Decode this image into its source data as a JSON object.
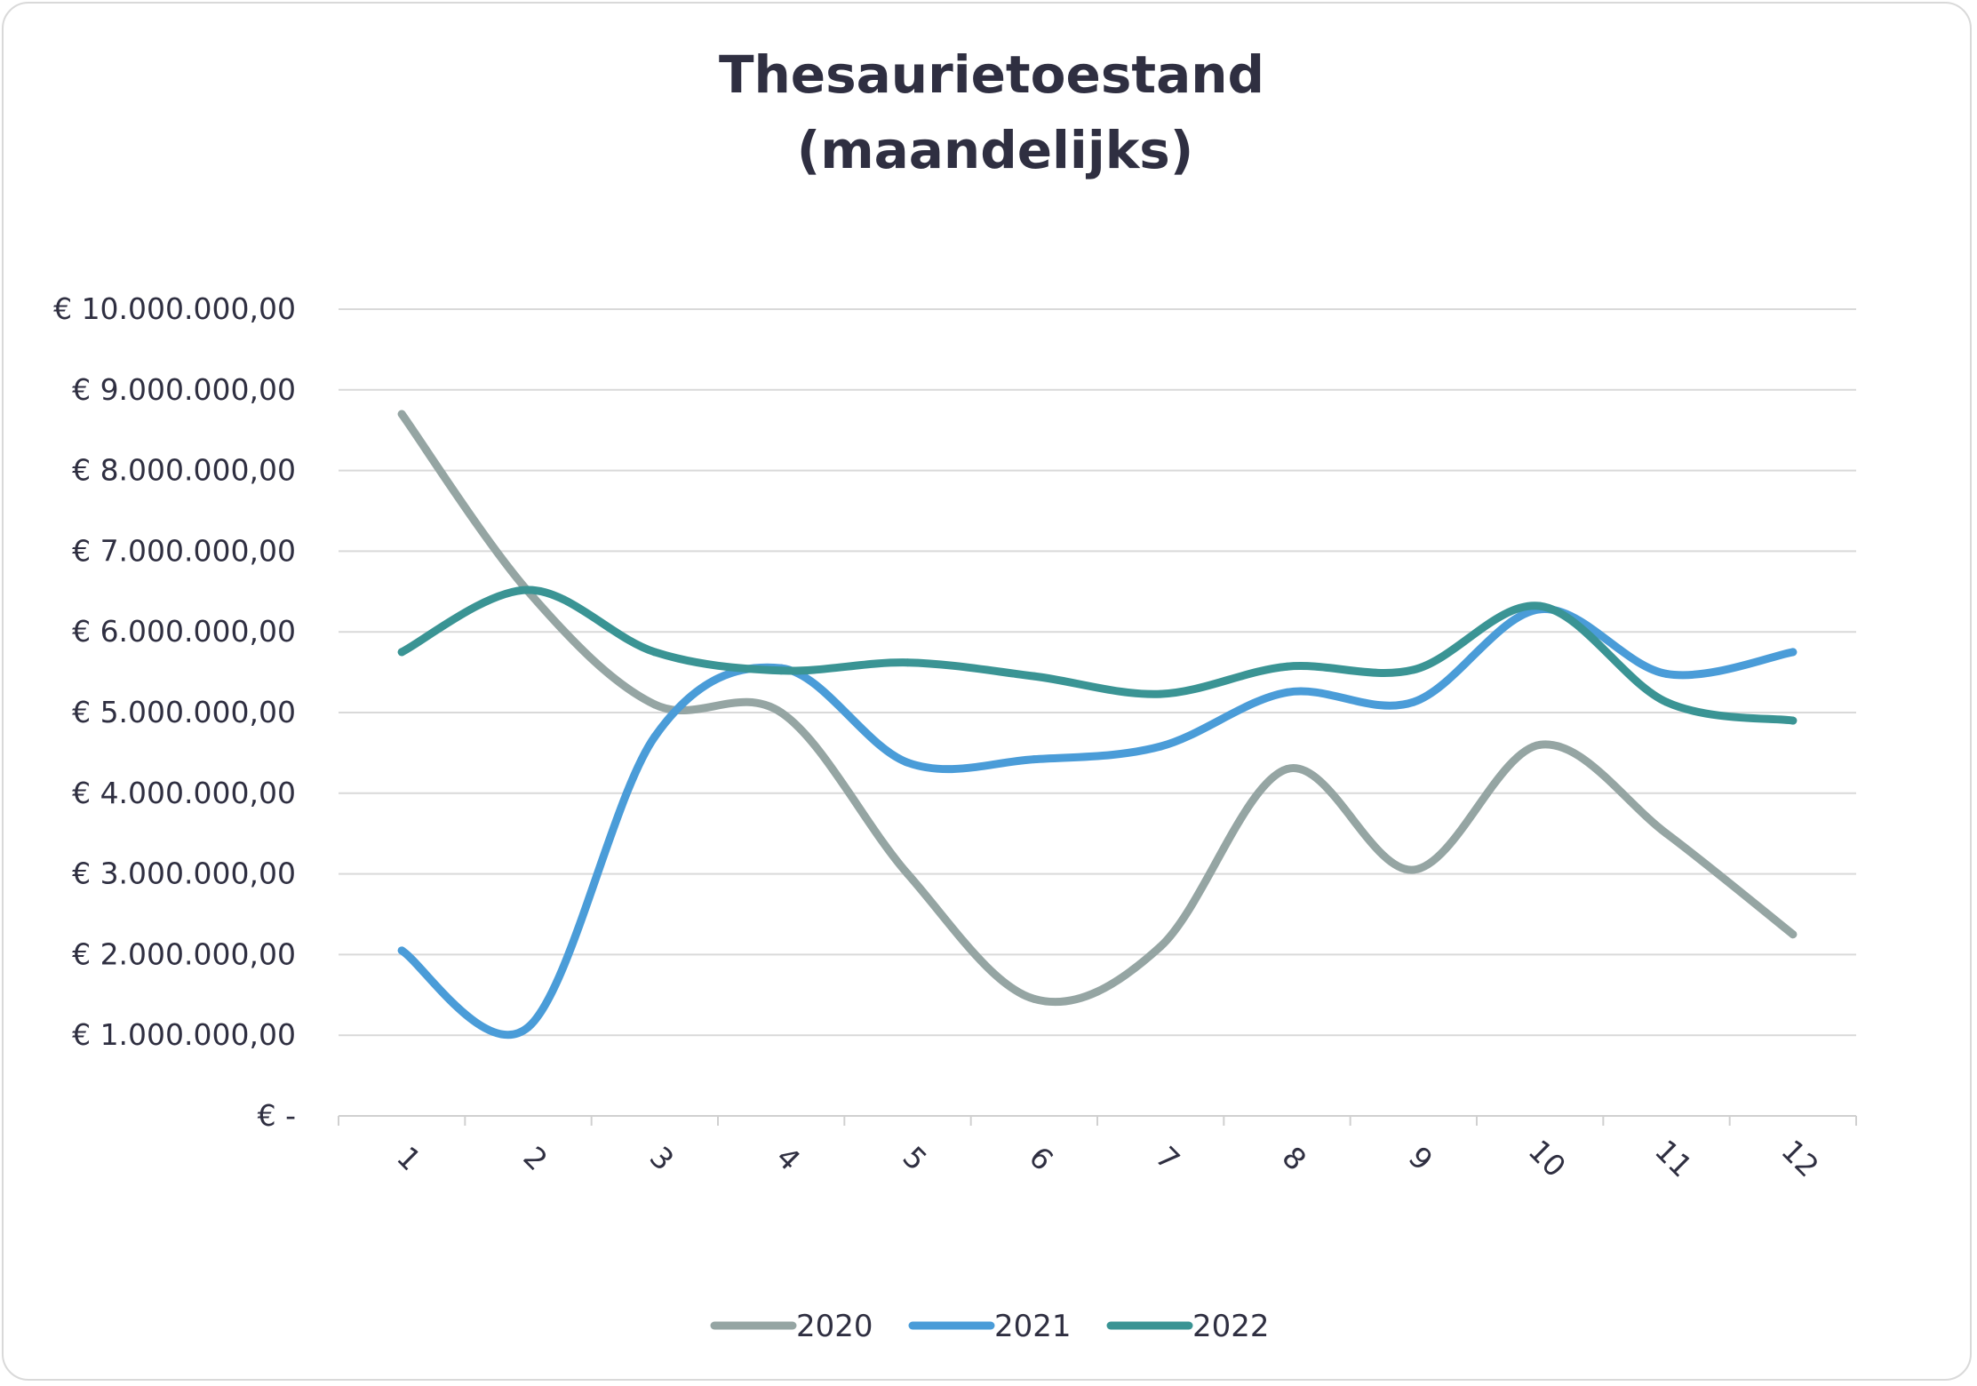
{
  "chart_data": {
    "type": "line",
    "title": "Thesaurietoestand",
    "subtitle": "(maandelijks)",
    "categories": [
      "1",
      "2",
      "3",
      "4",
      "5",
      "6",
      "7",
      "8",
      "9",
      "10",
      "11",
      "12"
    ],
    "ylim": [
      0,
      10000000
    ],
    "yticks": [
      0,
      1000000,
      2000000,
      3000000,
      4000000,
      5000000,
      6000000,
      7000000,
      8000000,
      9000000,
      10000000
    ],
    "ytick_labels": [
      "€ -",
      "€ 1.000.000,00",
      "€ 2.000.000,00",
      "€ 3.000.000,00",
      "€ 4.000.000,00",
      "€ 5.000.000,00",
      "€ 6.000.000,00",
      "€ 7.000.000,00",
      "€ 8.000.000,00",
      "€ 9.000.000,00",
      "€ 10.000.000,00"
    ],
    "grid": true,
    "legend": "bottom",
    "smooth": true,
    "series": [
      {
        "name": "2020",
        "color": "#95a5a3",
        "values": [
          8700000,
          6500000,
          5100000,
          5000000,
          3000000,
          1450000,
          2100000,
          4300000,
          3050000,
          4600000,
          3500000,
          2250000
        ]
      },
      {
        "name": "2021",
        "color": "#4a9cd8",
        "values": [
          2050000,
          1100000,
          4700000,
          5550000,
          4380000,
          4420000,
          4580000,
          5250000,
          5130000,
          6280000,
          5480000,
          5750000
        ]
      },
      {
        "name": "2022",
        "color": "#3a9494",
        "values": [
          5750000,
          6520000,
          5750000,
          5520000,
          5620000,
          5450000,
          5230000,
          5570000,
          5530000,
          6320000,
          5130000,
          4900000
        ]
      }
    ]
  }
}
